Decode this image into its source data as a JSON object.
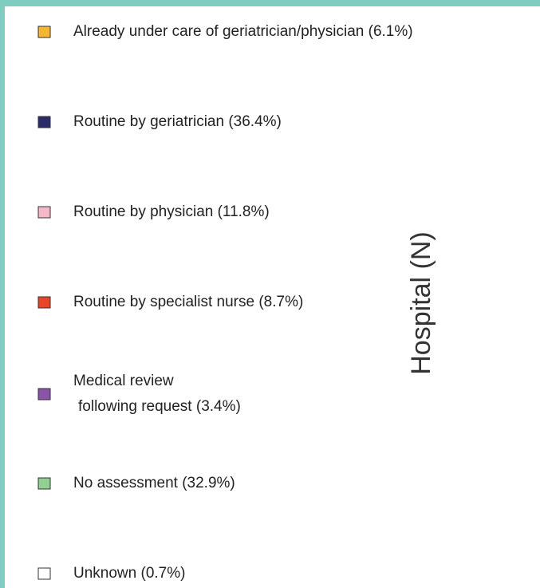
{
  "legend": {
    "items": [
      {
        "lines": [
          "Already under care of geriatrician/physician (6.1%)"
        ],
        "color": "#f5b731"
      },
      {
        "lines": [
          "Routine by geriatrician (36.4%)"
        ],
        "color": "#2b2a6b"
      },
      {
        "lines": [
          "Routine by physician (11.8%)"
        ],
        "color": "#f4b8c9"
      },
      {
        "lines": [
          "Routine by specialist nurse (8.7%)"
        ],
        "color": "#e8452a"
      },
      {
        "lines": [
          "Medical review",
          "following request (3.4%)"
        ],
        "color": "#8a55a6"
      },
      {
        "lines": [
          "No assessment (32.9%)"
        ],
        "color": "#91cf95"
      },
      {
        "lines": [
          "Unknown (0.7%)"
        ],
        "color": "#ffffff"
      }
    ]
  },
  "axis_label": "Hospital (N)"
}
